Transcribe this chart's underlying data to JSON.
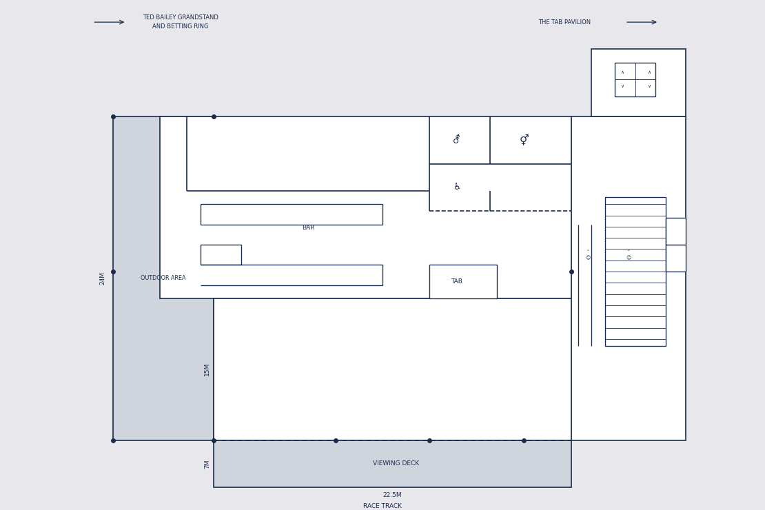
{
  "bg_color": "#e8e8ec",
  "wall_color": "#1a2a4a",
  "fill_color": "#d0d4dc",
  "white_color": "#ffffff",
  "lw": 1.2,
  "title_left": "TED BAILEY GRANDSTAND\nAND BETTING RING",
  "title_right": "THE TAB PAVILION",
  "bottom_label": "RACE TRACK",
  "dim_24m": "24M",
  "dim_15m": "15M",
  "dim_7m": "7M",
  "dim_225m": "22.5M",
  "label_bar": "BAR",
  "label_tab": "TAB",
  "label_outdoor": "OUTDOOR AREA",
  "label_viewing": "VIEWING DECK"
}
